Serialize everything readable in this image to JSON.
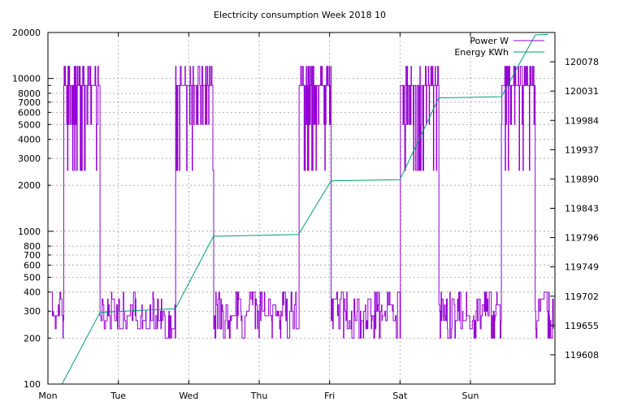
{
  "chart_data": {
    "type": "line",
    "title": "Electricity consumption Week 2018 10",
    "x_categories": [
      "Mon",
      "Tue",
      "Wed",
      "Thu",
      "Fri",
      "Sat",
      "Sun"
    ],
    "x_range_days": [
      0,
      7.2
    ],
    "y_left": {
      "scale": "log",
      "range": [
        100,
        20000
      ],
      "ticks": [
        100,
        200,
        300,
        400,
        500,
        600,
        700,
        800,
        1000,
        2000,
        3000,
        4000,
        5000,
        6000,
        7000,
        8000,
        10000,
        20000
      ]
    },
    "y_right": {
      "scale": "linear",
      "range": [
        119561,
        120125
      ],
      "ticks": [
        119608,
        119655,
        119702,
        119749,
        119796,
        119843,
        119890,
        119937,
        119984,
        120031,
        120078
      ]
    },
    "grid": true,
    "legend_position": "top-right",
    "series": [
      {
        "name": "Power W",
        "axis": "left",
        "color": "#9400d3",
        "active_periods": [
          [
            0.22,
            0.74
          ],
          [
            1.81,
            2.35
          ],
          [
            3.56,
            4.02
          ],
          [
            5.0,
            5.55
          ],
          [
            6.44,
            6.92
          ]
        ],
        "active_levels": [
          9000,
          12000,
          5000,
          2500
        ],
        "idle_levels": [
          200,
          230,
          260,
          280,
          300,
          330,
          360,
          400
        ]
      },
      {
        "name": "Energy KWh",
        "axis": "right",
        "color": "#009e73",
        "points": [
          [
            0.0,
            119561
          ],
          [
            0.2,
            119561
          ],
          [
            0.74,
            119676
          ],
          [
            1.81,
            119682
          ],
          [
            2.35,
            119798
          ],
          [
            3.56,
            119801
          ],
          [
            4.02,
            119887
          ],
          [
            5.0,
            119889
          ],
          [
            5.55,
            120020
          ],
          [
            6.44,
            120022
          ],
          [
            6.92,
            120121
          ],
          [
            7.1,
            120122
          ]
        ]
      }
    ]
  }
}
